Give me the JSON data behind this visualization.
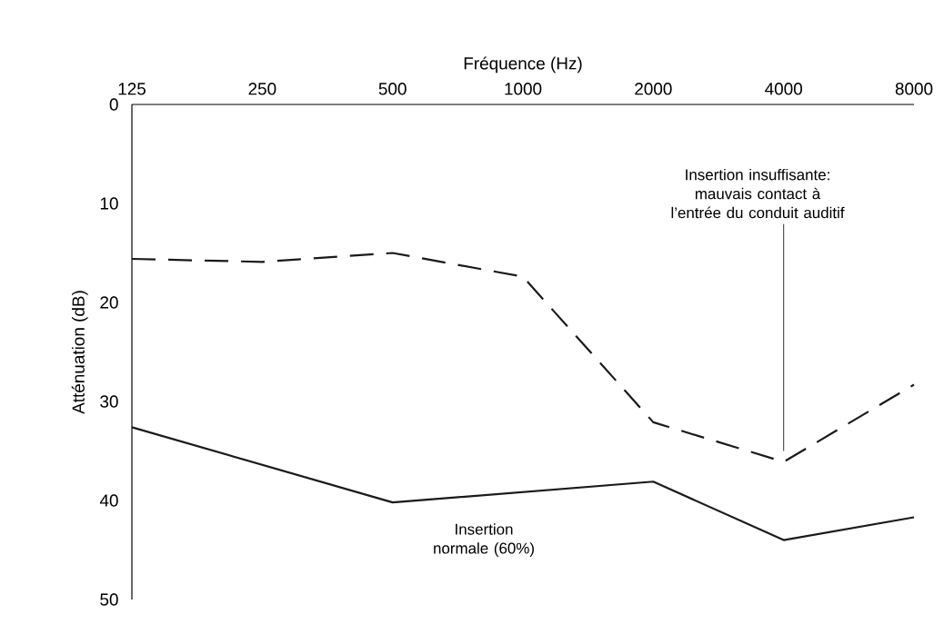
{
  "chart_data": {
    "type": "line",
    "xlabel": "Fréquence (Hz)",
    "ylabel": "Atténuation (dB)",
    "log": "x",
    "xlim": [
      125,
      8000
    ],
    "xticks": [
      125,
      250,
      500,
      1000,
      2000,
      4000,
      8000
    ],
    "ylim": [
      50,
      0
    ],
    "yticks": [
      0,
      10,
      20,
      30,
      40,
      50
    ],
    "series": [
      {
        "name": "Insertion insuffisante: mauvais contact à l’entrée du conduit auditif",
        "color": "#1a1a1a",
        "line_style": "dashed",
        "x": [
          125,
          250,
          500,
          1000,
          2000,
          4000,
          8000
        ],
        "values": [
          15.6,
          15.9,
          15.0,
          17.4,
          32.1,
          36.1,
          28.3
        ]
      },
      {
        "name": "Insertion normale (60%)",
        "color": "#1a1a1a",
        "line_style": "solid",
        "x": [
          125,
          500,
          2000,
          4000,
          8000
        ],
        "values": [
          32.6,
          40.2,
          38.1,
          44.0,
          41.7
        ]
      }
    ]
  }
}
